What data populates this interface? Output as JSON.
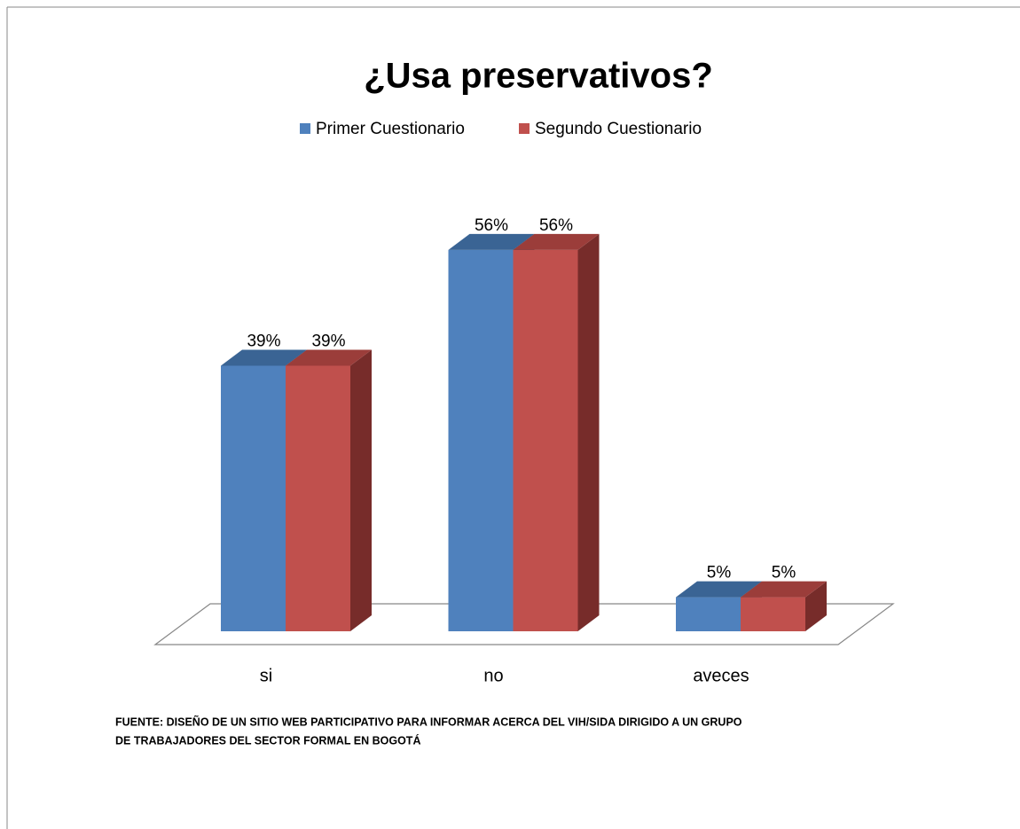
{
  "chart_data": {
    "type": "bar",
    "title": "¿Usa preservativos?",
    "categories": [
      "si",
      "no",
      "aveces"
    ],
    "series": [
      {
        "name": "Primer  Cuestionario",
        "color": "#4f81bd",
        "top_color": "#3a6494",
        "side_color": "#2f5075",
        "values": [
          39,
          56,
          5
        ],
        "value_labels": [
          "39%",
          "56%",
          "5%"
        ]
      },
      {
        "name": "Segundo Cuestionario",
        "color": "#c0504d",
        "top_color": "#9b3d3a",
        "side_color": "#772c2a",
        "values": [
          39,
          56,
          5
        ],
        "value_labels": [
          "39%",
          "56%",
          "5%"
        ]
      }
    ],
    "legend": "top",
    "source": [
      "FUENTE: DISEÑO DE UN SITIO WEB  PARTICIPATIVO PARA INFORMAR ACERCA DEL VIH/SIDA DIRIGIDO A UN GRUPO",
      "DE TRABAJADORES DEL SECTOR FORMAL EN BOGOTÁ"
    ]
  }
}
